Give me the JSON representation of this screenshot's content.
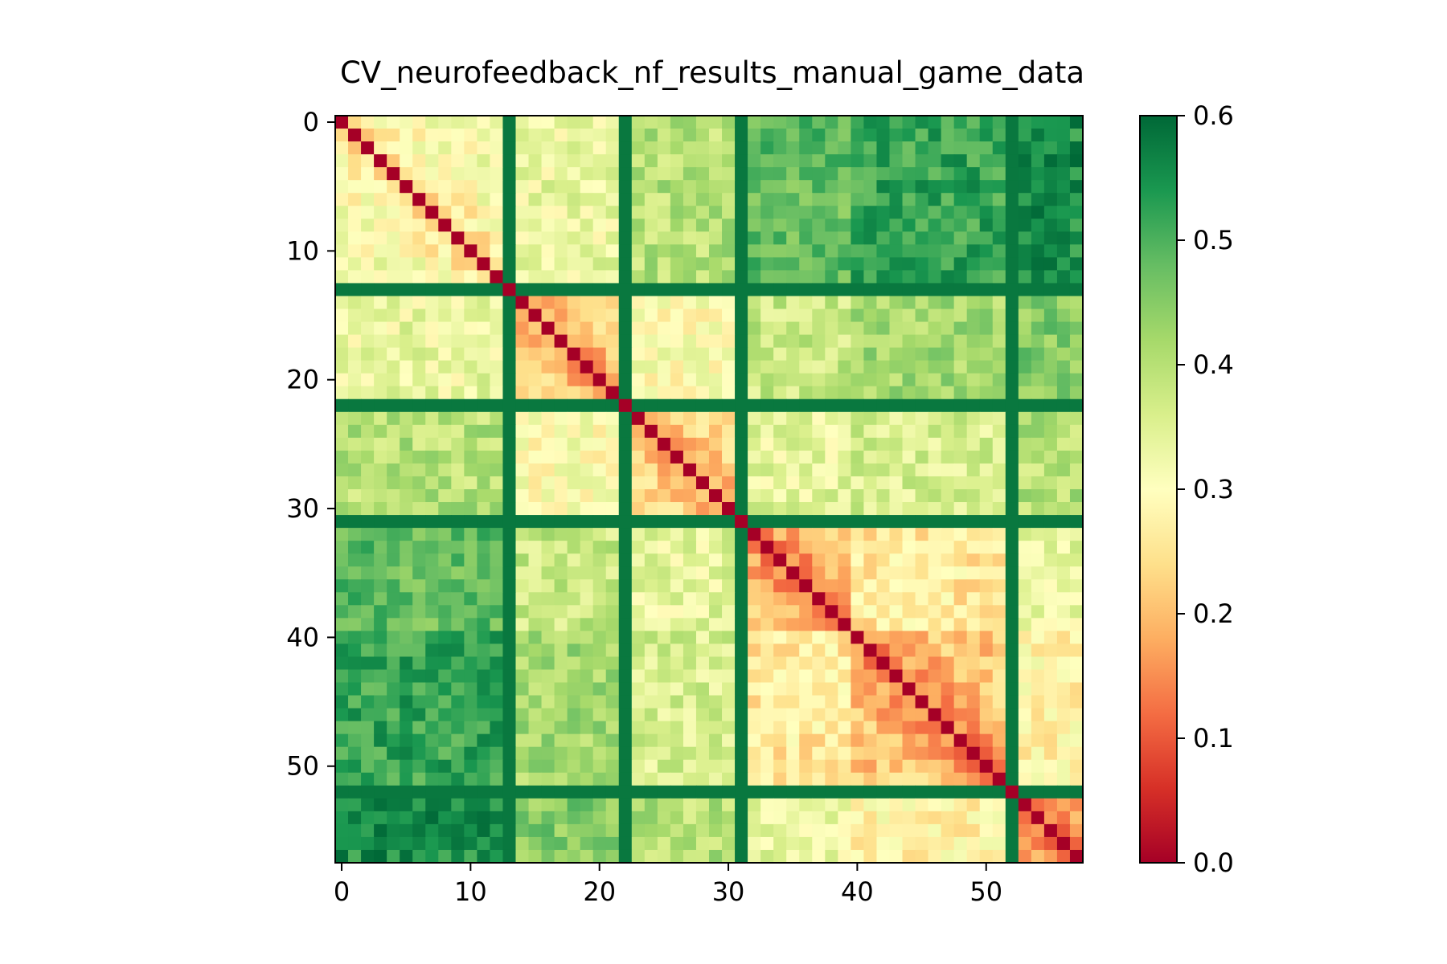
{
  "chart_data": {
    "type": "heatmap",
    "title": "CV_neurofeedback_nf_results_manual_game_data",
    "xlabel": "",
    "ylabel": "",
    "n": 58,
    "xlim": [
      -0.5,
      57.5
    ],
    "ylim": [
      57.5,
      -0.5
    ],
    "x_ticks": [
      0,
      10,
      20,
      30,
      40,
      50
    ],
    "x_tick_labels": [
      "0",
      "10",
      "20",
      "30",
      "40",
      "50"
    ],
    "y_ticks": [
      0,
      10,
      20,
      30,
      40,
      50
    ],
    "y_tick_labels": [
      "0",
      "10",
      "20",
      "30",
      "40",
      "50"
    ],
    "colormap": "RdYlGn",
    "colormap_stops": [
      "#a50026",
      "#d73027",
      "#f46d43",
      "#fdae61",
      "#fee08b",
      "#ffffbf",
      "#d9ef8b",
      "#a6d96a",
      "#66bd63",
      "#1a9850",
      "#006837"
    ],
    "vmin": 0.0,
    "vmax": 0.6,
    "colorbar_ticks": [
      0.0,
      0.1,
      0.2,
      0.3,
      0.4,
      0.5,
      0.6
    ],
    "colorbar_tick_labels": [
      "0.0",
      "0.1",
      "0.2",
      "0.3",
      "0.4",
      "0.5",
      "0.6"
    ],
    "diagonal_value": 0.0,
    "high_rows_cols": [
      13,
      22,
      31,
      52
    ],
    "high_rows_cols_value": 0.58,
    "blocks": [
      {
        "range": [
          0,
          12
        ],
        "within_mean": 0.3
      },
      {
        "range": [
          14,
          21
        ],
        "within_mean": 0.23
      },
      {
        "range": [
          23,
          30
        ],
        "within_mean": 0.24
      },
      {
        "range": [
          32,
          39
        ],
        "within_mean": 0.2
      },
      {
        "range": [
          40,
          51
        ],
        "within_mean": 0.2
      },
      {
        "range": [
          53,
          57
        ],
        "within_mean": 0.18
      }
    ],
    "between_block_means": [
      [
        0.3,
        0.33,
        0.4,
        0.48,
        0.52,
        0.55
      ],
      [
        0.33,
        0.23,
        0.3,
        0.38,
        0.42,
        0.45
      ],
      [
        0.4,
        0.3,
        0.24,
        0.34,
        0.36,
        0.4
      ],
      [
        0.48,
        0.38,
        0.34,
        0.2,
        0.26,
        0.33
      ],
      [
        0.52,
        0.42,
        0.36,
        0.26,
        0.2,
        0.28
      ],
      [
        0.55,
        0.45,
        0.4,
        0.33,
        0.28,
        0.18
      ]
    ]
  }
}
